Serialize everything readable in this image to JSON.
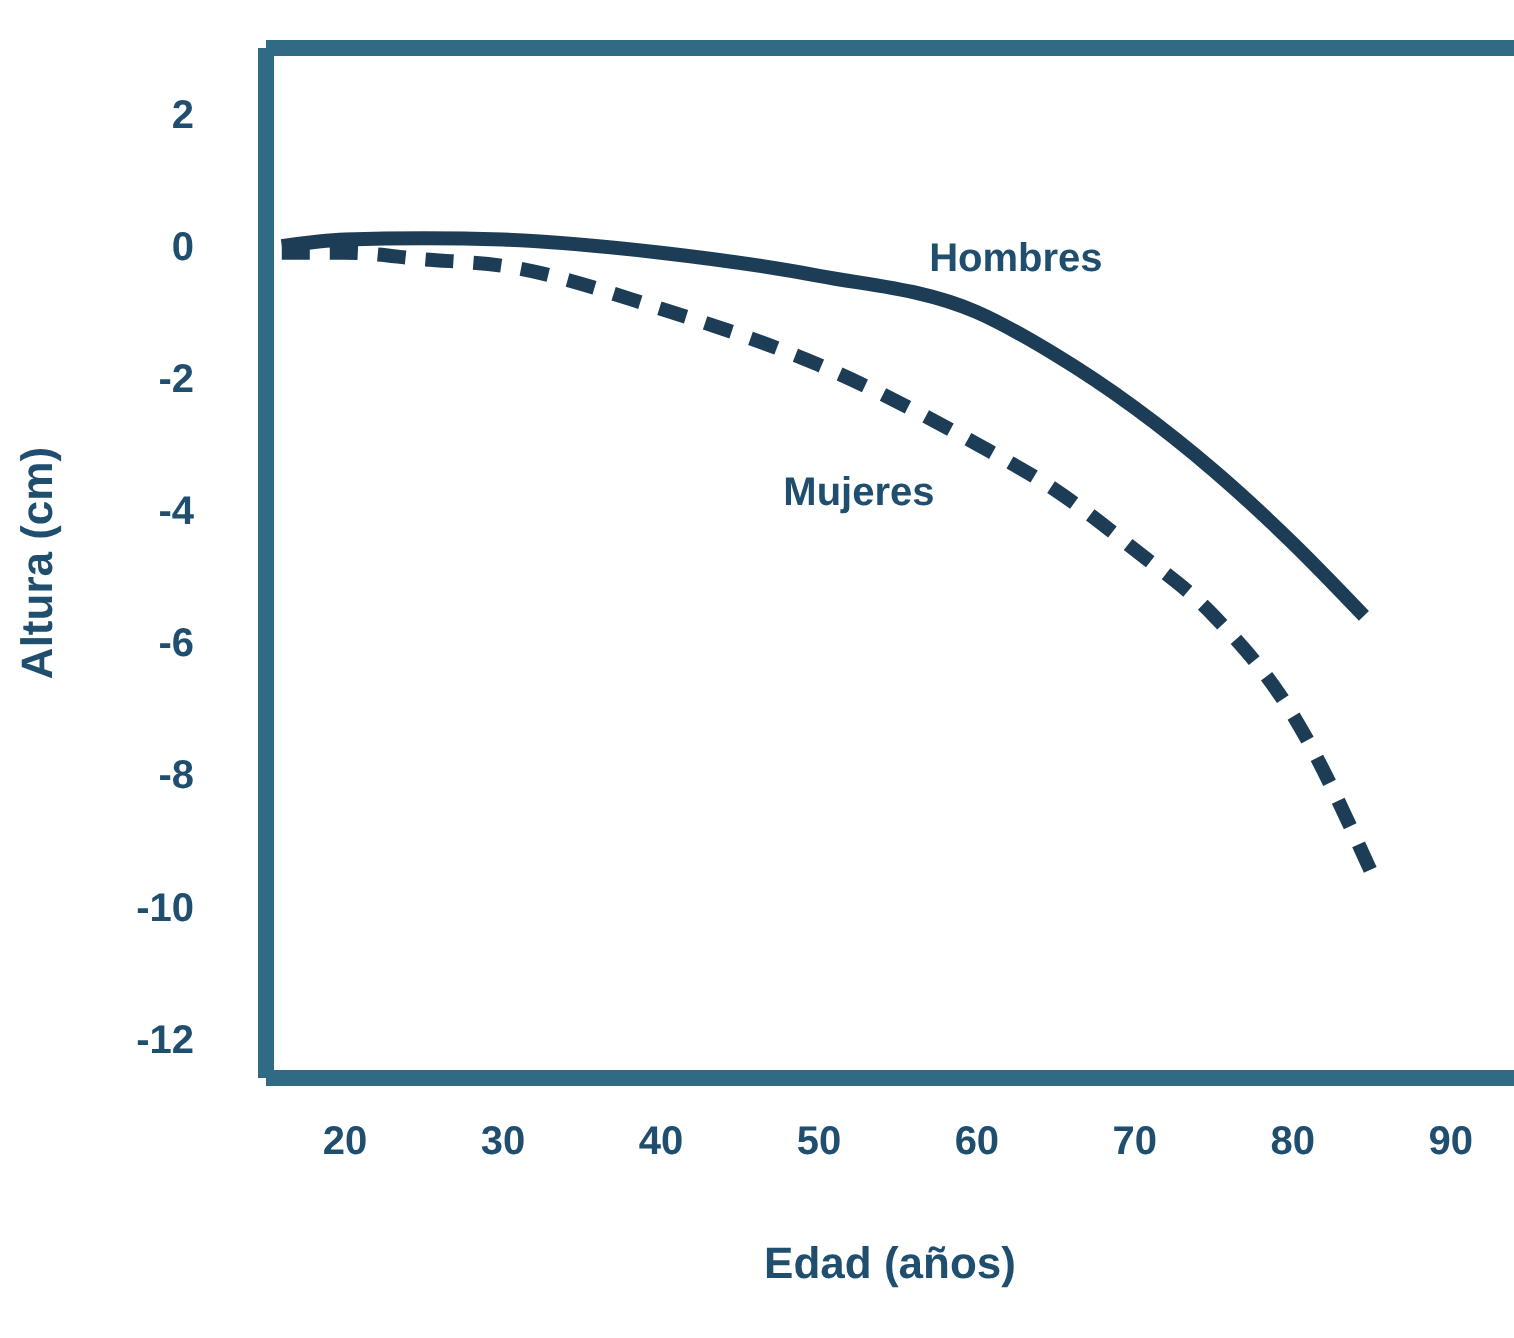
{
  "chart_data": {
    "type": "line",
    "xlabel": "Edad (años)",
    "ylabel": "Altura (cm)",
    "xlim": [
      15,
      94
    ],
    "xticks": [
      20,
      30,
      40,
      50,
      60,
      70,
      80,
      90
    ],
    "ylim": [
      -12.6,
      3
    ],
    "yticks": [
      2,
      0,
      -2,
      -4,
      -6,
      -8,
      -10,
      -12
    ],
    "marker": "none",
    "series": [
      {
        "name": "Hombres",
        "color": "#1c3d55",
        "line_style": "solid",
        "x": [
          16,
          20,
          25,
          30,
          40,
          50,
          60,
          65,
          70,
          75,
          80,
          84.5
        ],
        "values": [
          0,
          0.1,
          0.12,
          0.1,
          -0.1,
          -0.45,
          -1.0,
          -1.65,
          -2.45,
          -3.4,
          -4.5,
          -5.6
        ]
      },
      {
        "name": "Mujeres",
        "color": "#1c3d55",
        "line_style": "dashed",
        "x": [
          16,
          20,
          25,
          30,
          40,
          50,
          60,
          65,
          70,
          75,
          80,
          85
        ],
        "values": [
          -0.1,
          -0.1,
          -0.2,
          -0.3,
          -0.95,
          -1.8,
          -3.0,
          -3.7,
          -4.6,
          -5.6,
          -7.1,
          -9.5
        ]
      }
    ]
  }
}
